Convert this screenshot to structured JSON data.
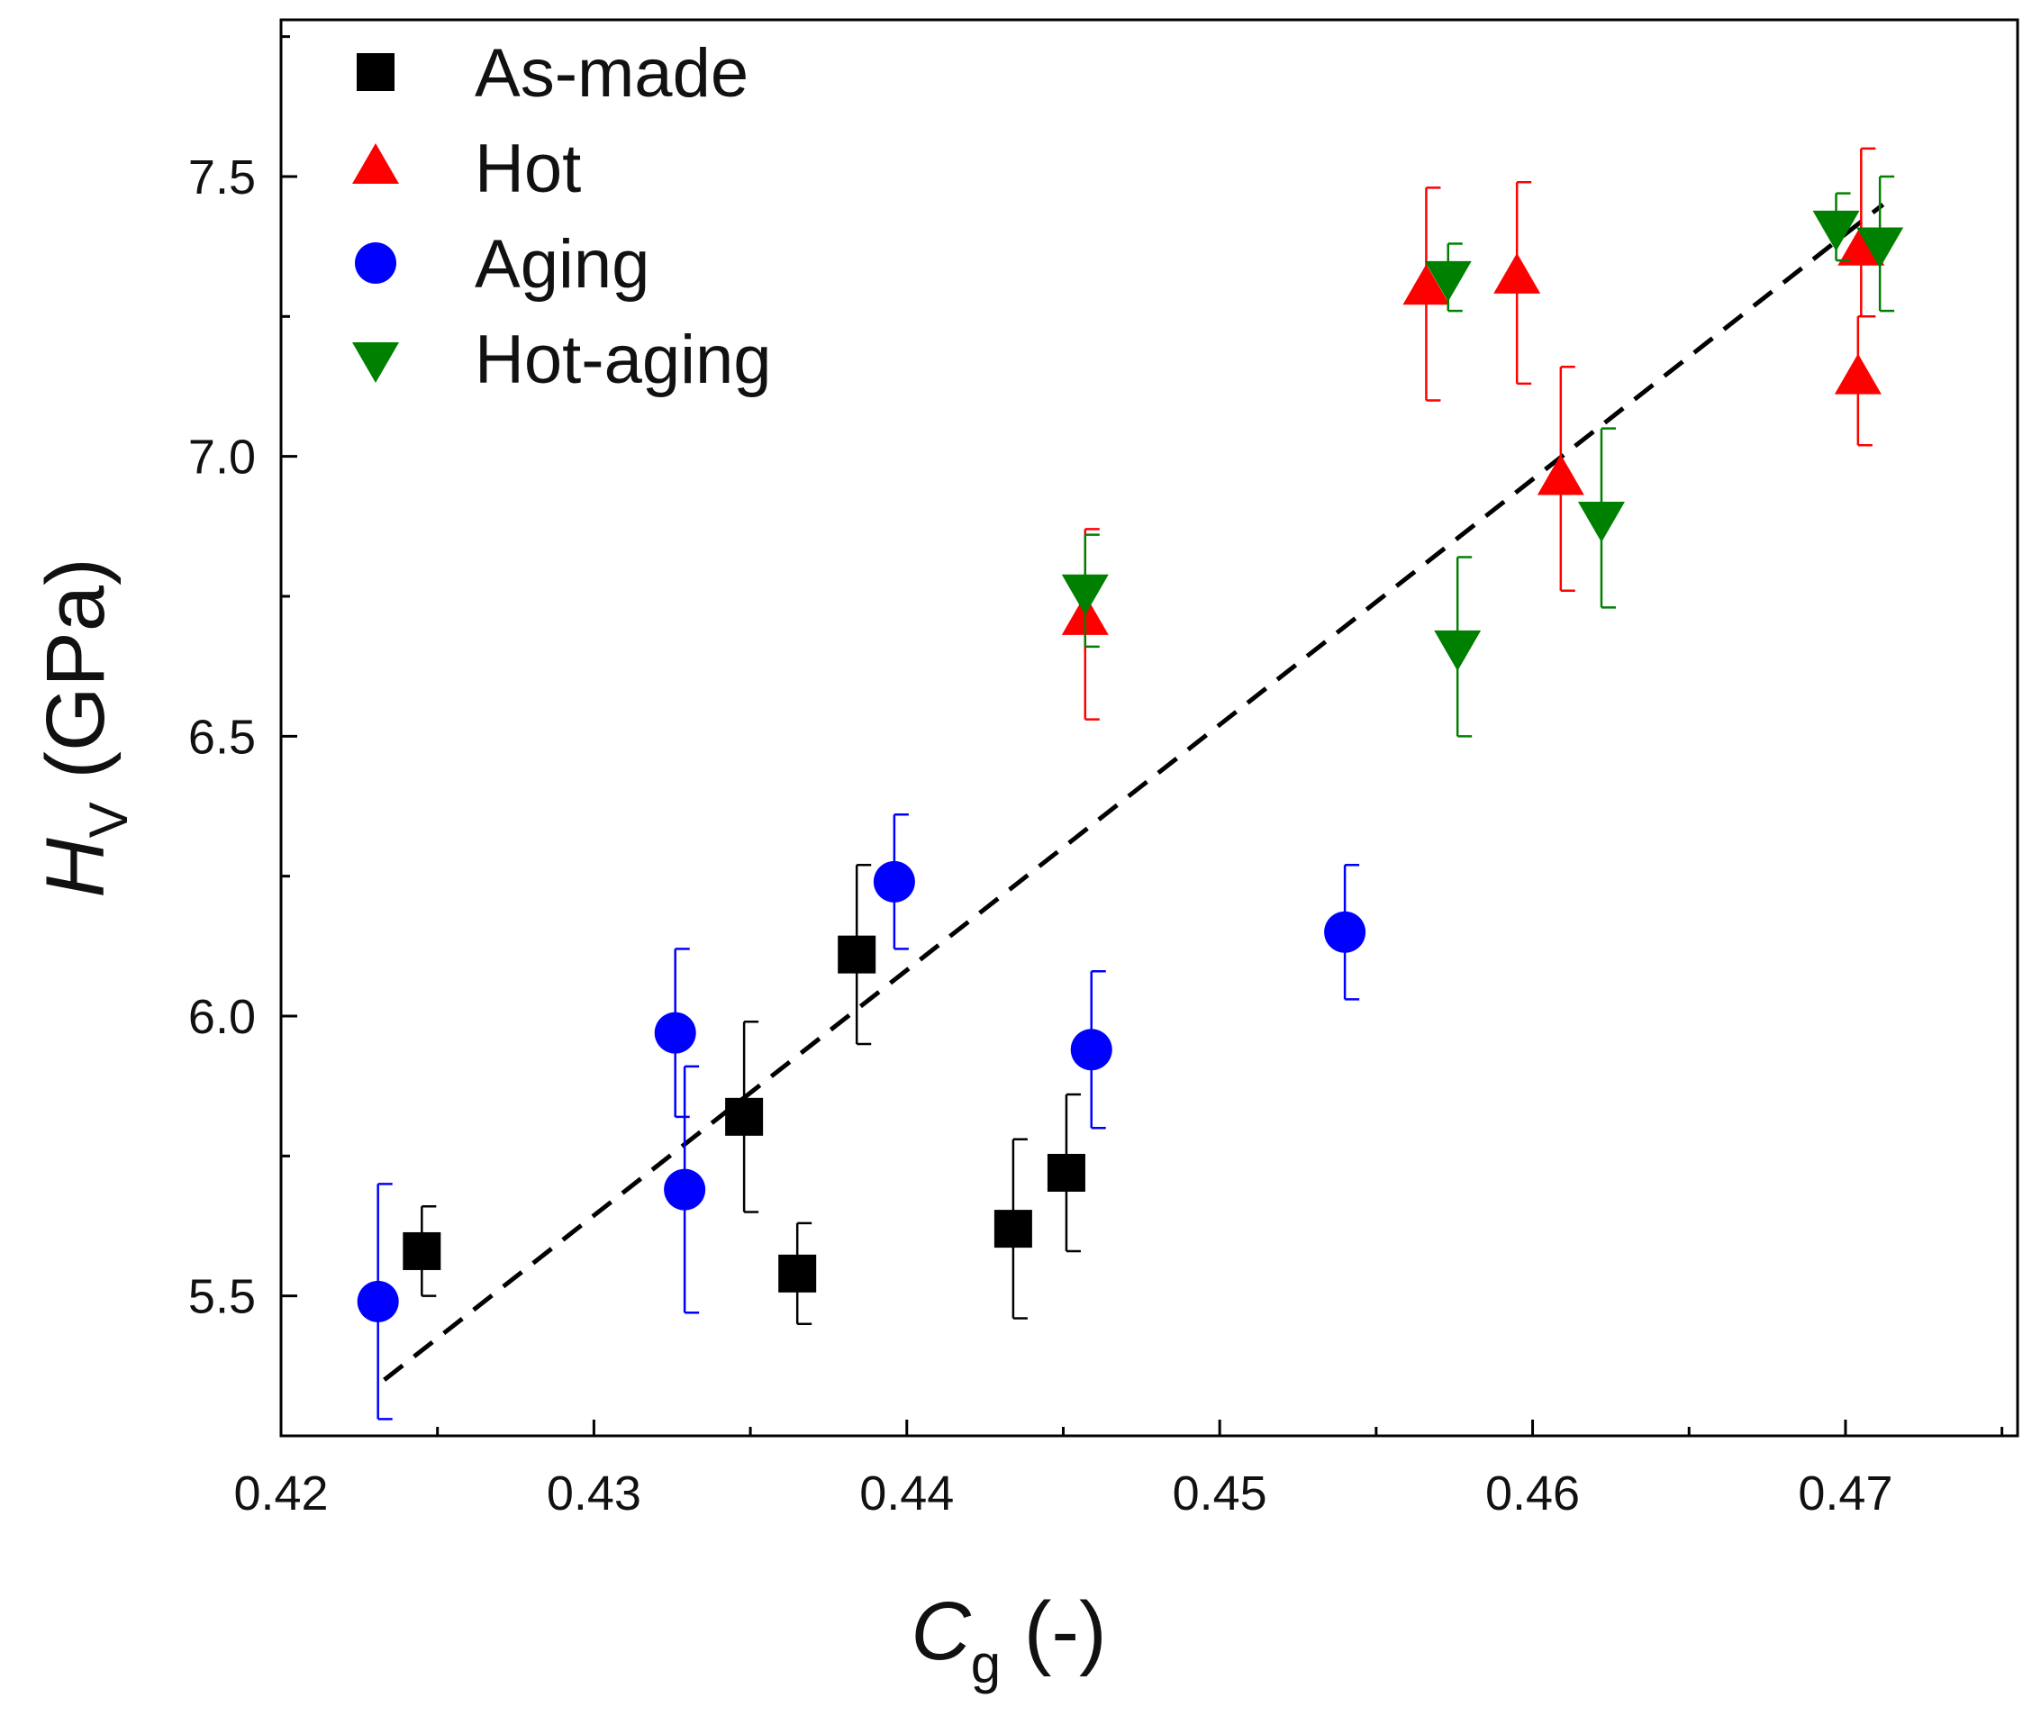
{
  "chart_data": {
    "type": "scatter",
    "xlabel": {
      "symbol": "C",
      "subscript": "g",
      "unit": " (-)"
    },
    "ylabel": {
      "symbol": "H",
      "subscript": "V",
      "unit": " (GPa)"
    },
    "xlim": [
      0.42,
      0.4755
    ],
    "ylim": [
      5.25,
      7.78
    ],
    "xticks": [
      0.42,
      0.43,
      0.44,
      0.45,
      0.46,
      0.47
    ],
    "xtick_labels": [
      "0.42",
      "0.43",
      "0.44",
      "0.45",
      "0.46",
      "0.47"
    ],
    "yticks": [
      5.5,
      6.0,
      6.5,
      7.0,
      7.5
    ],
    "ytick_labels": [
      "5.5",
      "6.0",
      "6.5",
      "7.0",
      "7.5"
    ],
    "legend_position": "top-left",
    "series": [
      {
        "name": "As-made",
        "marker": "square",
        "color": "#000000",
        "points": [
          {
            "x": 0.4245,
            "y": 5.58,
            "err_up": 0.08,
            "err_down": 0.08
          },
          {
            "x": 0.4348,
            "y": 5.82,
            "err_up": 0.17,
            "err_down": 0.17
          },
          {
            "x": 0.4365,
            "y": 5.54,
            "err_up": 0.09,
            "err_down": 0.09
          },
          {
            "x": 0.4384,
            "y": 6.11,
            "err_up": 0.16,
            "err_down": 0.16
          },
          {
            "x": 0.4434,
            "y": 5.62,
            "err_up": 0.16,
            "err_down": 0.16
          },
          {
            "x": 0.4451,
            "y": 5.72,
            "err_up": 0.14,
            "err_down": 0.14
          }
        ]
      },
      {
        "name": "Hot",
        "marker": "triangle-up",
        "color": "#ff0000",
        "points": [
          {
            "x": 0.4457,
            "y": 6.71,
            "err_up": 0.16,
            "err_down": 0.18
          },
          {
            "x": 0.4566,
            "y": 7.3,
            "err_up": 0.18,
            "err_down": 0.2
          },
          {
            "x": 0.4595,
            "y": 7.32,
            "err_up": 0.17,
            "err_down": 0.19
          },
          {
            "x": 0.4609,
            "y": 6.96,
            "err_up": 0.2,
            "err_down": 0.2
          },
          {
            "x": 0.4705,
            "y": 7.37,
            "err_up": 0.18,
            "err_down": 0.12
          },
          {
            "x": 0.4704,
            "y": 7.14,
            "err_up": 0.11,
            "err_down": 0.12
          }
        ]
      },
      {
        "name": "Aging",
        "marker": "circle",
        "color": "#0000ff",
        "points": [
          {
            "x": 0.4231,
            "y": 5.49,
            "err_up": 0.21,
            "err_down": 0.21
          },
          {
            "x": 0.4326,
            "y": 5.97,
            "err_up": 0.15,
            "err_down": 0.15
          },
          {
            "x": 0.4329,
            "y": 5.69,
            "err_up": 0.22,
            "err_down": 0.22
          },
          {
            "x": 0.4396,
            "y": 6.24,
            "err_up": 0.12,
            "err_down": 0.12
          },
          {
            "x": 0.4459,
            "y": 5.94,
            "err_up": 0.14,
            "err_down": 0.14
          },
          {
            "x": 0.454,
            "y": 6.15,
            "err_up": 0.12,
            "err_down": 0.12
          }
        ]
      },
      {
        "name": "Hot-aging",
        "marker": "triangle-down",
        "color": "#008000",
        "points": [
          {
            "x": 0.4457,
            "y": 6.76,
            "err_up": 0.1,
            "err_down": 0.1
          },
          {
            "x": 0.4573,
            "y": 7.32,
            "err_up": 0.06,
            "err_down": 0.06
          },
          {
            "x": 0.4576,
            "y": 6.66,
            "err_up": 0.16,
            "err_down": 0.16
          },
          {
            "x": 0.4622,
            "y": 6.89,
            "err_up": 0.16,
            "err_down": 0.16
          },
          {
            "x": 0.4697,
            "y": 7.41,
            "err_up": 0.06,
            "err_down": 0.06
          },
          {
            "x": 0.4711,
            "y": 7.38,
            "err_up": 0.12,
            "err_down": 0.12
          }
        ]
      }
    ],
    "fit_line": {
      "style": "dashed",
      "color": "#000000",
      "x": [
        0.4233,
        0.4712
      ],
      "y": [
        5.35,
        7.45
      ]
    }
  }
}
